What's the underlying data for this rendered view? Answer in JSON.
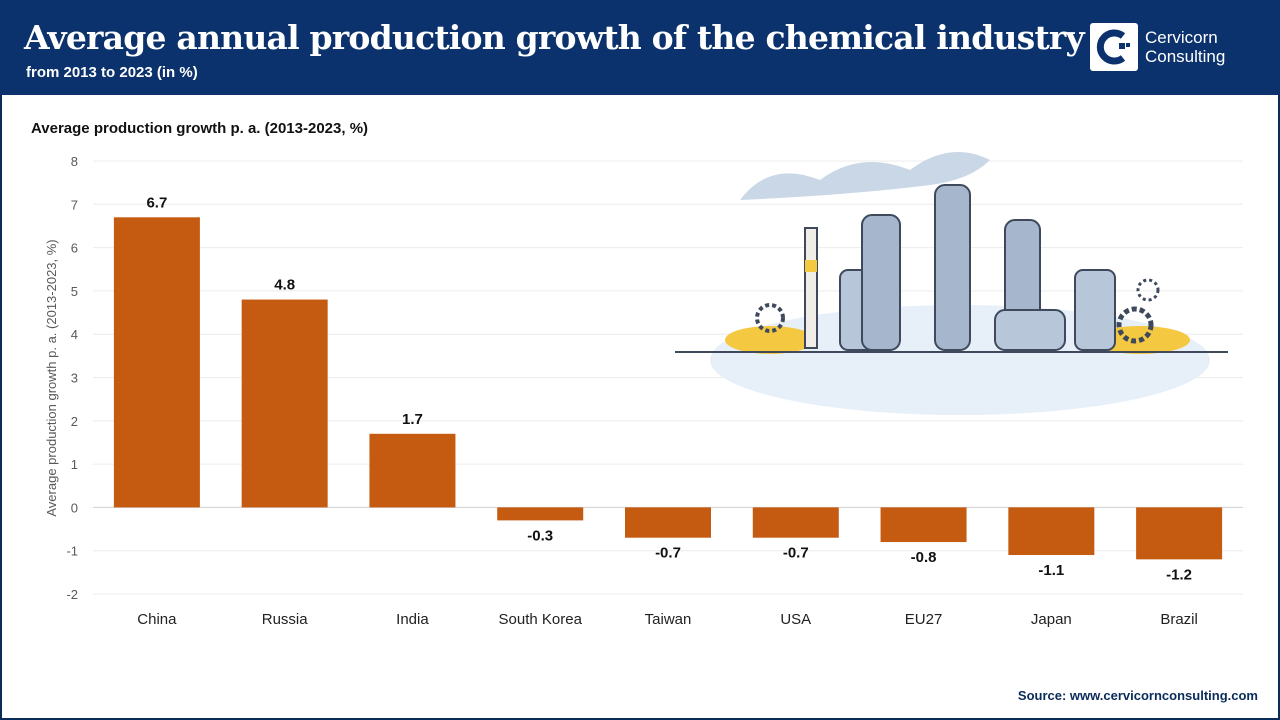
{
  "header": {
    "title": "Average annual production growth of the chemical industry",
    "subtitle": "from 2013 to 2023 (in %)",
    "logo_text_line1": "Cervicorn",
    "logo_text_line2": "Consulting"
  },
  "source": "Source: www.cervicornconsulting.com",
  "colors": {
    "header": "#0b326c",
    "bar": "#c55a11"
  },
  "chart_data": {
    "type": "bar",
    "title": "Average production growth p. a. (2013-2023, %)",
    "xlabel": "",
    "ylabel": "Average production growth p. a. (2013-2023, %)",
    "categories": [
      "China",
      "Russia",
      "India",
      "South Korea",
      "Taiwan",
      "USA",
      "EU27",
      "Japan",
      "Brazil"
    ],
    "values": [
      6.7,
      4.8,
      1.7,
      -0.3,
      -0.7,
      -0.7,
      -0.8,
      -1.1,
      -1.2
    ],
    "data_labels": [
      "6.7",
      "4.8",
      "1.7",
      "-0.3",
      "-0.7",
      "-0.7",
      "-0.8",
      "-1.1",
      "-1.2"
    ],
    "ylim": [
      -2,
      8
    ],
    "yticks": [
      8,
      7,
      6,
      5,
      4,
      3,
      2,
      1,
      0,
      -1,
      -2
    ],
    "grid": true,
    "legend": "none"
  }
}
